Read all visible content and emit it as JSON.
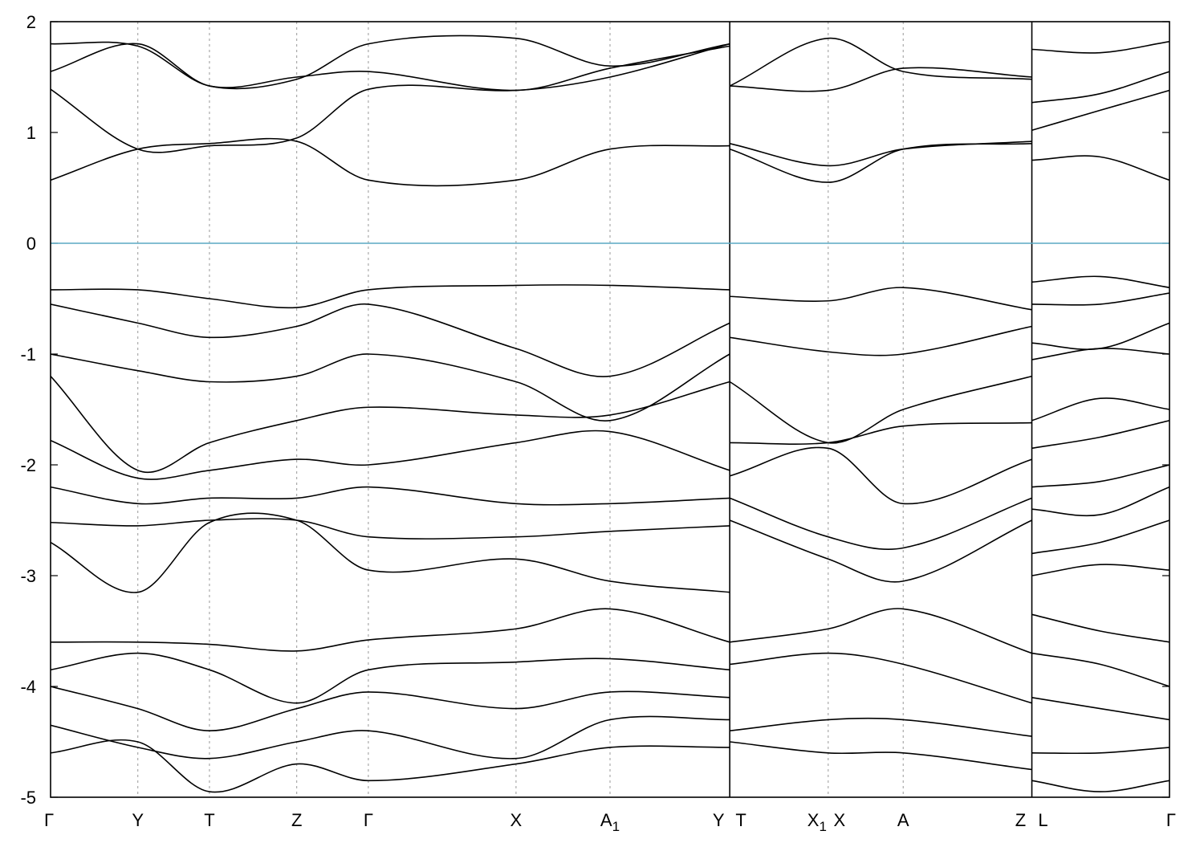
{
  "chart_data": {
    "type": "line",
    "title": "",
    "xlabel": "",
    "ylabel": "",
    "ylim": [
      -5,
      2
    ],
    "y_ticks": [
      -5,
      -4,
      -3,
      -2,
      -1,
      0,
      1,
      2
    ],
    "grid": "vertical dashed lines at high-symmetry points",
    "fermi_level": {
      "value": 0,
      "color": "#5aa9c4"
    },
    "band_color": "#000000",
    "x_range": [
      0,
      100
    ],
    "high_symmetry_points": [
      {
        "label": "Γ",
        "sub": "",
        "x": 0.0
      },
      {
        "label": "Y",
        "sub": "",
        "x": 7.8
      },
      {
        "label": "T",
        "sub": "",
        "x": 14.2
      },
      {
        "label": "Z",
        "sub": "",
        "x": 22.0
      },
      {
        "label": "Γ",
        "sub": "",
        "x": 28.4
      },
      {
        "label": "X",
        "sub": "",
        "x": 41.6
      },
      {
        "label": "A",
        "sub": "1",
        "x": 50.0
      },
      {
        "label": "Y",
        "sub": "",
        "x": 60.7
      },
      {
        "label": "T",
        "sub": "",
        "x": 60.7
      },
      {
        "label": "X",
        "sub": "1",
        "x": 69.5
      },
      {
        "label": "X",
        "sub": "",
        "x": 69.5
      },
      {
        "label": "A",
        "sub": "",
        "x": 76.2
      },
      {
        "label": "Z",
        "sub": "",
        "x": 87.7
      },
      {
        "label": "L",
        "sub": "",
        "x": 87.7
      },
      {
        "label": "Γ",
        "sub": "",
        "x": 100.0
      }
    ],
    "segment_breaks": [
      60.7,
      87.7
    ],
    "segments": [
      {
        "x_start": 0.0,
        "x_end": 60.7,
        "bands": [
          {
            "x": [
              0,
              7.8,
              14.2,
              22,
              28.4,
              41.6,
              50,
              60.7
            ],
            "y": [
              1.8,
              1.78,
              1.42,
              1.48,
              1.8,
              1.85,
              1.6,
              1.8
            ]
          },
          {
            "x": [
              0,
              7.8,
              14.2,
              22,
              28.4,
              41.6,
              50,
              60.7
            ],
            "y": [
              1.55,
              1.8,
              1.42,
              1.5,
              1.55,
              1.38,
              1.58,
              1.78
            ]
          },
          {
            "x": [
              0,
              7.8,
              14.2,
              22,
              28.4,
              41.6,
              50,
              60.7
            ],
            "y": [
              1.39,
              0.85,
              0.88,
              0.95,
              1.39,
              1.38,
              1.5,
              1.8
            ]
          },
          {
            "x": [
              0,
              7.8,
              14.2,
              22,
              28.4,
              41.6,
              50,
              60.7
            ],
            "y": [
              0.57,
              0.85,
              0.9,
              0.92,
              0.57,
              0.57,
              0.85,
              0.88
            ]
          },
          {
            "x": [
              0,
              7.8,
              14.2,
              22,
              28.4,
              41.6,
              50,
              60.7
            ],
            "y": [
              -0.42,
              -0.42,
              -0.5,
              -0.58,
              -0.42,
              -0.38,
              -0.38,
              -0.42
            ]
          },
          {
            "x": [
              0,
              7.8,
              14.2,
              22,
              28.4,
              41.6,
              50,
              60.7
            ],
            "y": [
              -0.55,
              -0.72,
              -0.85,
              -0.75,
              -0.55,
              -0.95,
              -1.2,
              -0.72
            ]
          },
          {
            "x": [
              0,
              7.8,
              14.2,
              22,
              28.4,
              41.6,
              50,
              60.7
            ],
            "y": [
              -1.0,
              -1.15,
              -1.25,
              -1.2,
              -1.0,
              -1.25,
              -1.6,
              -1.0
            ]
          },
          {
            "x": [
              0,
              7.8,
              14.2,
              22,
              28.4,
              41.6,
              50,
              60.7
            ],
            "y": [
              -1.2,
              -2.05,
              -1.8,
              -1.6,
              -1.48,
              -1.55,
              -1.55,
              -1.25
            ]
          },
          {
            "x": [
              0,
              7.8,
              14.2,
              22,
              28.4,
              41.6,
              50,
              60.7
            ],
            "y": [
              -1.78,
              -2.12,
              -2.05,
              -1.95,
              -2.0,
              -1.8,
              -1.7,
              -2.05
            ]
          },
          {
            "x": [
              0,
              7.8,
              14.2,
              22,
              28.4,
              41.6,
              50,
              60.7
            ],
            "y": [
              -2.2,
              -2.35,
              -2.3,
              -2.3,
              -2.2,
              -2.35,
              -2.35,
              -2.3
            ]
          },
          {
            "x": [
              0,
              7.8,
              14.2,
              22,
              28.4,
              41.6,
              50,
              60.7
            ],
            "y": [
              -2.52,
              -2.55,
              -2.5,
              -2.5,
              -2.65,
              -2.65,
              -2.6,
              -2.55
            ]
          },
          {
            "x": [
              0,
              7.8,
              14.2,
              22,
              28.4,
              41.6,
              50,
              60.7
            ],
            "y": [
              -2.7,
              -3.15,
              -2.52,
              -2.5,
              -2.95,
              -2.85,
              -3.05,
              -3.15
            ]
          },
          {
            "x": [
              0,
              7.8,
              14.2,
              22,
              28.4,
              41.6,
              50,
              60.7
            ],
            "y": [
              -3.6,
              -3.6,
              -3.62,
              -3.68,
              -3.58,
              -3.48,
              -3.3,
              -3.6
            ]
          },
          {
            "x": [
              0,
              7.8,
              14.2,
              22,
              28.4,
              41.6,
              50,
              60.7
            ],
            "y": [
              -3.85,
              -3.7,
              -3.85,
              -4.15,
              -3.85,
              -3.78,
              -3.75,
              -3.85
            ]
          },
          {
            "x": [
              0,
              7.8,
              14.2,
              22,
              28.4,
              41.6,
              50,
              60.7
            ],
            "y": [
              -4.0,
              -4.2,
              -4.4,
              -4.2,
              -4.05,
              -4.2,
              -4.05,
              -4.1
            ]
          },
          {
            "x": [
              0,
              7.8,
              14.2,
              22,
              28.4,
              41.6,
              50,
              60.7
            ],
            "y": [
              -4.35,
              -4.55,
              -4.65,
              -4.5,
              -4.4,
              -4.65,
              -4.3,
              -4.3
            ]
          },
          {
            "x": [
              0,
              7.8,
              14.2,
              22,
              28.4,
              41.6,
              50,
              60.7
            ],
            "y": [
              -4.6,
              -4.5,
              -4.95,
              -4.7,
              -4.85,
              -4.7,
              -4.55,
              -4.55
            ]
          }
        ]
      },
      {
        "x_start": 60.7,
        "x_end": 87.7,
        "bands": [
          {
            "x": [
              60.7,
              69.5,
              76.2,
              87.7
            ],
            "y": [
              1.42,
              1.38,
              1.58,
              1.5
            ]
          },
          {
            "x": [
              60.7,
              69.5,
              76.2,
              87.7
            ],
            "y": [
              1.42,
              1.85,
              1.55,
              1.48
            ]
          },
          {
            "x": [
              60.7,
              69.5,
              76.2,
              87.7
            ],
            "y": [
              0.9,
              0.7,
              0.85,
              0.92
            ]
          },
          {
            "x": [
              60.7,
              69.5,
              76.2,
              87.7
            ],
            "y": [
              0.85,
              0.55,
              0.85,
              0.9
            ]
          },
          {
            "x": [
              60.7,
              69.5,
              76.2,
              87.7
            ],
            "y": [
              -0.48,
              -0.52,
              -0.4,
              -0.6
            ]
          },
          {
            "x": [
              60.7,
              69.5,
              76.2,
              87.7
            ],
            "y": [
              -0.85,
              -0.98,
              -1.0,
              -0.75
            ]
          },
          {
            "x": [
              60.7,
              69.5,
              76.2,
              87.7
            ],
            "y": [
              -1.25,
              -1.8,
              -1.5,
              -1.2
            ]
          },
          {
            "x": [
              60.7,
              69.5,
              76.2,
              87.7
            ],
            "y": [
              -1.8,
              -1.8,
              -1.65,
              -1.62
            ]
          },
          {
            "x": [
              60.7,
              69.5,
              76.2,
              87.7
            ],
            "y": [
              -2.1,
              -1.85,
              -2.35,
              -1.95
            ]
          },
          {
            "x": [
              60.7,
              69.5,
              76.2,
              87.7
            ],
            "y": [
              -2.3,
              -2.65,
              -2.75,
              -2.3
            ]
          },
          {
            "x": [
              60.7,
              69.5,
              76.2,
              87.7
            ],
            "y": [
              -2.5,
              -2.85,
              -3.05,
              -2.5
            ]
          },
          {
            "x": [
              60.7,
              69.5,
              76.2,
              87.7
            ],
            "y": [
              -3.6,
              -3.48,
              -3.3,
              -3.7
            ]
          },
          {
            "x": [
              60.7,
              69.5,
              76.2,
              87.7
            ],
            "y": [
              -3.8,
              -3.7,
              -3.8,
              -4.15
            ]
          },
          {
            "x": [
              60.7,
              69.5,
              76.2,
              87.7
            ],
            "y": [
              -4.4,
              -4.3,
              -4.3,
              -4.45
            ]
          },
          {
            "x": [
              60.7,
              69.5,
              76.2,
              87.7
            ],
            "y": [
              -4.5,
              -4.6,
              -4.6,
              -4.75
            ]
          }
        ]
      },
      {
        "x_start": 87.7,
        "x_end": 100.0,
        "bands": [
          {
            "x": [
              87.7,
              93.8,
              100
            ],
            "y": [
              1.75,
              1.72,
              1.82
            ]
          },
          {
            "x": [
              87.7,
              93.8,
              100
            ],
            "y": [
              1.27,
              1.35,
              1.55
            ]
          },
          {
            "x": [
              87.7,
              93.8,
              100
            ],
            "y": [
              1.02,
              1.2,
              1.38
            ]
          },
          {
            "x": [
              87.7,
              93.8,
              100
            ],
            "y": [
              0.75,
              0.78,
              0.57
            ]
          },
          {
            "x": [
              87.7,
              93.8,
              100
            ],
            "y": [
              -0.35,
              -0.3,
              -0.4
            ]
          },
          {
            "x": [
              87.7,
              93.8,
              100
            ],
            "y": [
              -0.55,
              -0.55,
              -0.45
            ]
          },
          {
            "x": [
              87.7,
              93.8,
              100
            ],
            "y": [
              -0.9,
              -0.95,
              -0.72
            ]
          },
          {
            "x": [
              87.7,
              93.8,
              100
            ],
            "y": [
              -1.05,
              -0.95,
              -1.0
            ]
          },
          {
            "x": [
              87.7,
              93.8,
              100
            ],
            "y": [
              -1.6,
              -1.4,
              -1.5
            ]
          },
          {
            "x": [
              87.7,
              93.8,
              100
            ],
            "y": [
              -1.85,
              -1.75,
              -1.6
            ]
          },
          {
            "x": [
              87.7,
              93.8,
              100
            ],
            "y": [
              -2.2,
              -2.15,
              -2.0
            ]
          },
          {
            "x": [
              87.7,
              93.8,
              100
            ],
            "y": [
              -2.4,
              -2.45,
              -2.2
            ]
          },
          {
            "x": [
              87.7,
              93.8,
              100
            ],
            "y": [
              -2.8,
              -2.7,
              -2.5
            ]
          },
          {
            "x": [
              87.7,
              93.8,
              100
            ],
            "y": [
              -3.0,
              -2.9,
              -2.95
            ]
          },
          {
            "x": [
              87.7,
              93.8,
              100
            ],
            "y": [
              -3.35,
              -3.5,
              -3.6
            ]
          },
          {
            "x": [
              87.7,
              93.8,
              100
            ],
            "y": [
              -3.7,
              -3.8,
              -4.0
            ]
          },
          {
            "x": [
              87.7,
              93.8,
              100
            ],
            "y": [
              -4.1,
              -4.2,
              -4.3
            ]
          },
          {
            "x": [
              87.7,
              93.8,
              100
            ],
            "y": [
              -4.6,
              -4.6,
              -4.55
            ]
          },
          {
            "x": [
              87.7,
              93.8,
              100
            ],
            "y": [
              -4.85,
              -4.95,
              -4.85
            ]
          }
        ]
      }
    ]
  }
}
